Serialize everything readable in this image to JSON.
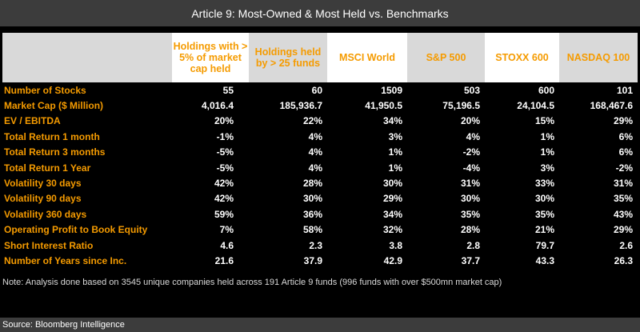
{
  "title": "Article 9: Most-Owned & Most Held vs. Benchmarks",
  "columns": [
    "Holdings with > 5% of market cap held",
    "Holdings held by > 25 funds",
    "MSCI World",
    "S&P 500",
    "STOXX 600",
    "NASDAQ 100"
  ],
  "rows": [
    {
      "label": "Number of Stocks",
      "values": [
        "55",
        "60",
        "1509",
        "503",
        "600",
        "101"
      ]
    },
    {
      "label": "Market Cap ($ Million)",
      "values": [
        "4,016.4",
        "185,936.7",
        "41,950.5",
        "75,196.5",
        "24,104.5",
        "168,467.6"
      ]
    },
    {
      "label": "EV / EBITDA",
      "values": [
        "20%",
        "22%",
        "34%",
        "20%",
        "15%",
        "29%"
      ]
    },
    {
      "label": "Total Return 1 month",
      "values": [
        "-1%",
        "4%",
        "3%",
        "4%",
        "1%",
        "6%"
      ]
    },
    {
      "label": "Total Return 3 months",
      "values": [
        "-5%",
        "4%",
        "1%",
        "-2%",
        "1%",
        "6%"
      ]
    },
    {
      "label": "Total Return 1 Year",
      "values": [
        "-5%",
        "4%",
        "1%",
        "-4%",
        "3%",
        "-2%"
      ]
    },
    {
      "label": "Volatility 30 days",
      "values": [
        "42%",
        "28%",
        "30%",
        "31%",
        "33%",
        "31%"
      ]
    },
    {
      "label": "Volatility 90 days",
      "values": [
        "42%",
        "30%",
        "29%",
        "30%",
        "30%",
        "35%"
      ]
    },
    {
      "label": "Volatility 360 days",
      "values": [
        "59%",
        "36%",
        "34%",
        "35%",
        "35%",
        "43%"
      ]
    },
    {
      "label": "Operating Profit to Book Equity",
      "values": [
        "7%",
        "58%",
        "32%",
        "28%",
        "21%",
        "29%"
      ]
    },
    {
      "label": "Short Interest Ratio",
      "values": [
        "4.6",
        "2.3",
        "3.8",
        "2.8",
        "79.7",
        "2.6"
      ]
    },
    {
      "label": "Number of Years since Inc.",
      "values": [
        "21.6",
        "37.9",
        "42.9",
        "37.7",
        "43.3",
        "26.3"
      ]
    }
  ],
  "note": "Note: Analysis done based on 3545 unique companies held across 191 Article 9 funds (996 funds with over $500mn market cap)",
  "source": "Source: Bloomberg Intelligence",
  "colors": {
    "accent": "#f59b00",
    "header_bg": "#ffffff",
    "title_bg": "#3c3c3c",
    "background": "#000000"
  }
}
